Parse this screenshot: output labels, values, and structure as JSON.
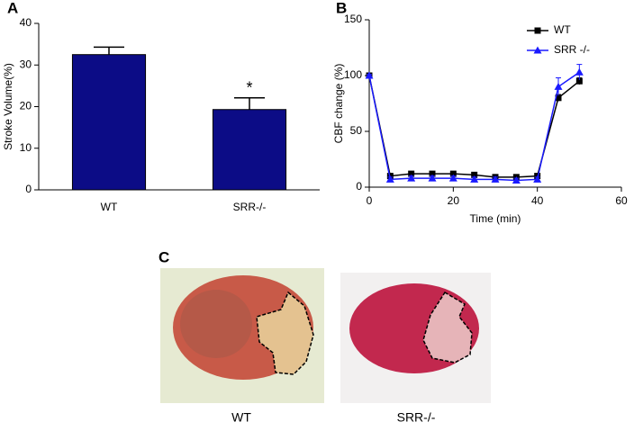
{
  "chart_data": [
    {
      "label": "A",
      "type": "bar",
      "ylabel": "Stroke Volume(%)",
      "categories": [
        "WT",
        "SRR-/-"
      ],
      "values": [
        32.5,
        19.3
      ],
      "errors": [
        1.8,
        2.8
      ],
      "color": "#0c0c86",
      "ylim": [
        0,
        40
      ],
      "yticks": [
        0,
        10,
        20,
        30,
        40
      ],
      "annotation": "*"
    },
    {
      "label": "B",
      "type": "line",
      "xlabel": "Time (min)",
      "ylabel": "CBF change (%)",
      "x": [
        0,
        5,
        10,
        15,
        20,
        25,
        30,
        35,
        40,
        45,
        50
      ],
      "series": [
        {
          "name": "WT",
          "color": "#000000",
          "marker": "square",
          "values": [
            100,
            10,
            12,
            12,
            12,
            11,
            9,
            9,
            10,
            80,
            95
          ],
          "errors": [
            1,
            2,
            2,
            2,
            2,
            2,
            2,
            2,
            2,
            3,
            3
          ]
        },
        {
          "name": "SRR -/-",
          "color": "#1a1aff",
          "marker": "triangle",
          "values": [
            100,
            7,
            8,
            8,
            8,
            7,
            7,
            6,
            7,
            90,
            103
          ],
          "errors": [
            1,
            2,
            2,
            2,
            2,
            2,
            2,
            2,
            2,
            8,
            7
          ]
        }
      ],
      "xlim": [
        0,
        60
      ],
      "xticks": [
        0,
        20,
        40,
        60
      ],
      "ylim": [
        0,
        150
      ],
      "yticks": [
        0,
        50,
        100,
        150
      ],
      "legend": "upper right"
    }
  ],
  "figure_c": {
    "label": "C",
    "captions": [
      "WT",
      "SRR-/-"
    ]
  }
}
